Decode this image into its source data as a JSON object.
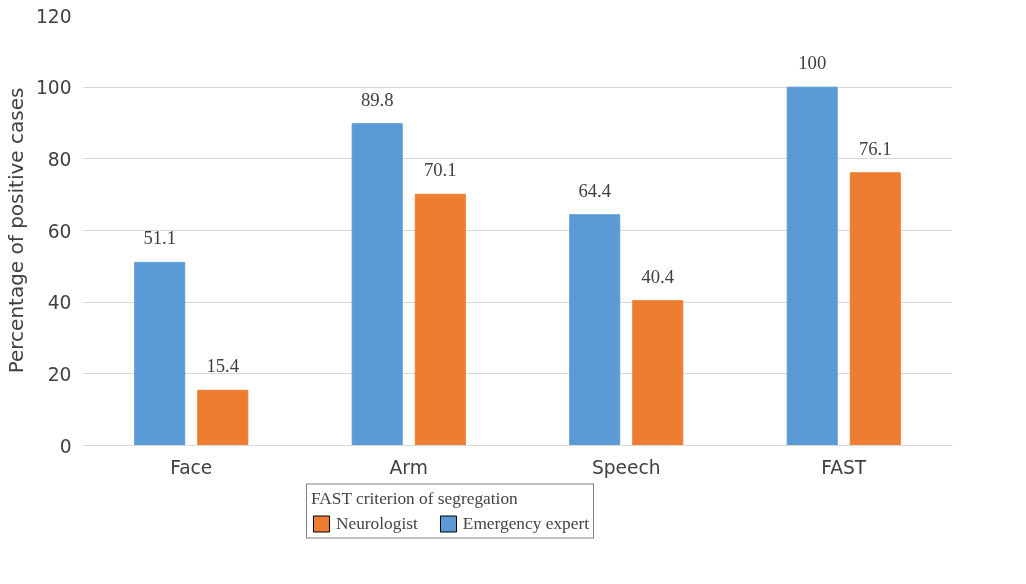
{
  "chart_data": {
    "type": "bar",
    "ylabel": "Percentage of positive cases",
    "legend_title": "FAST criterion of segregation",
    "categories": [
      "Face",
      "Arm",
      "Speech",
      "FAST"
    ],
    "series": [
      {
        "name": "Emergency expert",
        "color": "#5b9bd5",
        "values": [
          51.1,
          89.8,
          64.4,
          100
        ]
      },
      {
        "name": "Neurologist",
        "color": "#ed7d31",
        "values": [
          15.4,
          70.1,
          40.4,
          76.1
        ]
      }
    ],
    "ylim": [
      0,
      120
    ],
    "yticks": [
      0,
      20,
      40,
      60,
      80,
      100,
      120
    ],
    "grid": "y",
    "legend": "bottom",
    "data_labels": true
  }
}
